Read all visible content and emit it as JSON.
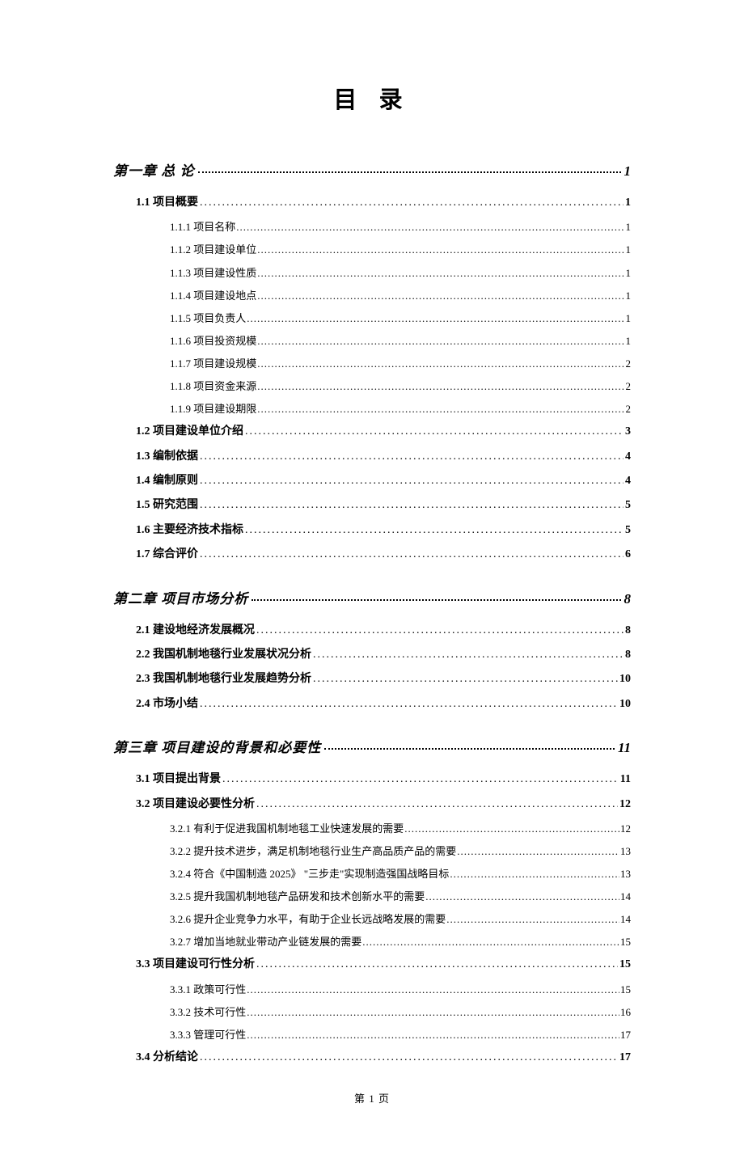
{
  "title": "目 录",
  "footer": "第 1 页",
  "colors": {
    "background": "#ffffff",
    "text": "#000000"
  },
  "typography": {
    "title_fontsize": 29,
    "chapter_fontsize": 17,
    "section_fontsize": 14,
    "subsection_fontsize": 13,
    "footer_fontsize": 13,
    "font_family": "SimSun"
  },
  "toc": [
    {
      "type": "chapter",
      "label": "第一章 总 论",
      "page": "1",
      "children": [
        {
          "type": "section",
          "label": "1.1 项目概要",
          "page": "1",
          "children": [
            {
              "type": "subsection",
              "label": "1.1.1 项目名称",
              "page": "1"
            },
            {
              "type": "subsection",
              "label": "1.1.2 项目建设单位",
              "page": "1"
            },
            {
              "type": "subsection",
              "label": "1.1.3 项目建设性质",
              "page": "1"
            },
            {
              "type": "subsection",
              "label": "1.1.4 项目建设地点",
              "page": "1"
            },
            {
              "type": "subsection",
              "label": "1.1.5 项目负责人",
              "page": "1"
            },
            {
              "type": "subsection",
              "label": "1.1.6 项目投资规模",
              "page": "1"
            },
            {
              "type": "subsection",
              "label": "1.1.7 项目建设规模",
              "page": "2"
            },
            {
              "type": "subsection",
              "label": "1.1.8 项目资金来源",
              "page": "2"
            },
            {
              "type": "subsection",
              "label": "1.1.9 项目建设期限",
              "page": "2"
            }
          ]
        },
        {
          "type": "section",
          "label": "1.2 项目建设单位介绍",
          "page": "3"
        },
        {
          "type": "section",
          "label": "1.3 编制依据",
          "page": "4"
        },
        {
          "type": "section",
          "label": "1.4 编制原则",
          "page": "4"
        },
        {
          "type": "section",
          "label": "1.5 研究范围",
          "page": "5"
        },
        {
          "type": "section",
          "label": "1.6 主要经济技术指标",
          "page": "5"
        },
        {
          "type": "section",
          "label": "1.7 综合评价",
          "page": "6"
        }
      ]
    },
    {
      "type": "chapter",
      "label": "第二章 项目市场分析",
      "page": "8",
      "children": [
        {
          "type": "section",
          "label": "2.1 建设地经济发展概况",
          "page": "8"
        },
        {
          "type": "section",
          "label": "2.2 我国机制地毯行业发展状况分析",
          "page": "8"
        },
        {
          "type": "section",
          "label": "2.3 我国机制地毯行业发展趋势分析",
          "page": "10"
        },
        {
          "type": "section",
          "label": "2.4 市场小结",
          "page": "10"
        }
      ]
    },
    {
      "type": "chapter",
      "label": "第三章 项目建设的背景和必要性",
      "page": "11",
      "children": [
        {
          "type": "section",
          "label": "3.1 项目提出背景",
          "page": "11"
        },
        {
          "type": "section",
          "label": "3.2 项目建设必要性分析",
          "page": "12",
          "children": [
            {
              "type": "subsection",
              "label": "3.2.1 有利于促进我国机制地毯工业快速发展的需要",
              "page": "12"
            },
            {
              "type": "subsection",
              "label": "3.2.2 提升技术进步，满足机制地毯行业生产高品质产品的需要",
              "page": "13"
            },
            {
              "type": "subsection",
              "label": "3.2.4 符合《中国制造 2025》 \"三步走\"实现制造强国战略目标",
              "page": "13"
            },
            {
              "type": "subsection",
              "label": "3.2.5 提升我国机制地毯产品研发和技术创新水平的需要",
              "page": "14"
            },
            {
              "type": "subsection",
              "label": "3.2.6 提升企业竞争力水平，有助于企业长远战略发展的需要",
              "page": "14"
            },
            {
              "type": "subsection",
              "label": "3.2.7 增加当地就业带动产业链发展的需要",
              "page": "15"
            }
          ]
        },
        {
          "type": "section",
          "label": "3.3 项目建设可行性分析",
          "page": "15",
          "children": [
            {
              "type": "subsection",
              "label": "3.3.1 政策可行性",
              "page": "15"
            },
            {
              "type": "subsection",
              "label": "3.3.2 技术可行性",
              "page": "16"
            },
            {
              "type": "subsection",
              "label": "3.3.3 管理可行性",
              "page": "17"
            }
          ]
        },
        {
          "type": "section",
          "label": "3.4 分析结论",
          "page": "17"
        }
      ]
    }
  ]
}
